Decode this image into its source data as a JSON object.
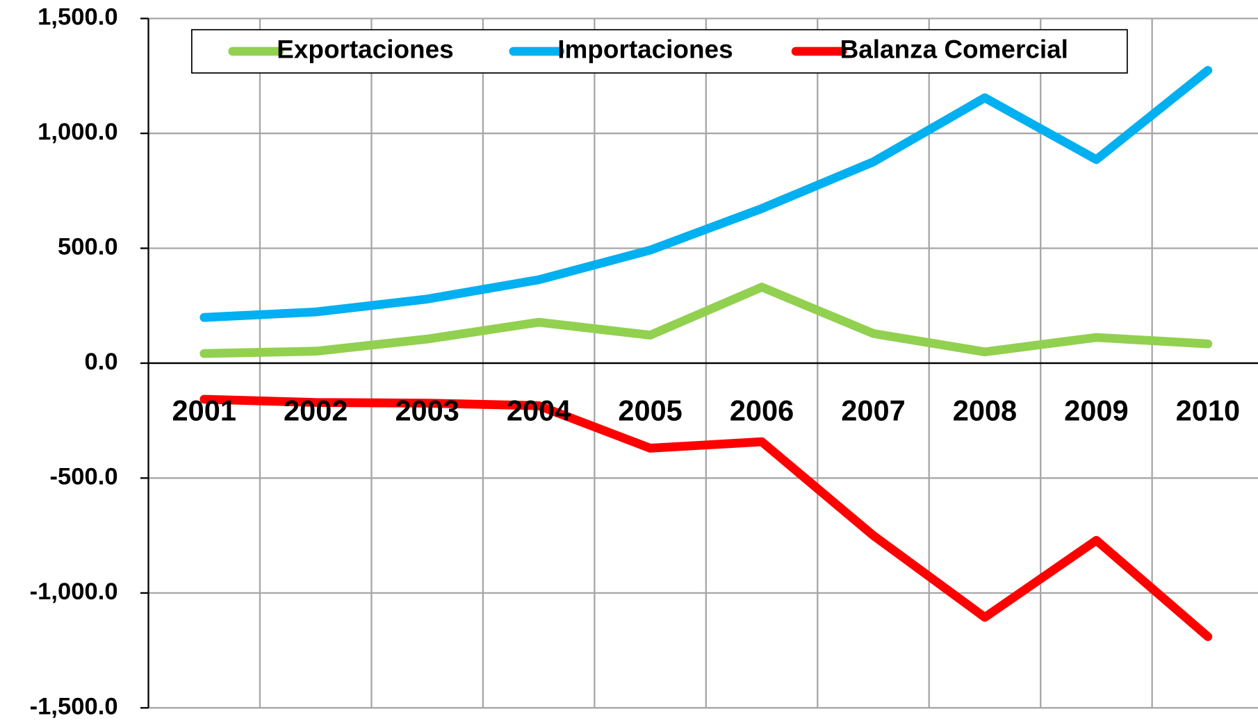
{
  "chart_data": {
    "type": "line",
    "categories": [
      "2001",
      "2002",
      "2003",
      "2004",
      "2005",
      "2006",
      "2007",
      "2008",
      "2009",
      "2010"
    ],
    "series": [
      {
        "name": "Exportaciones",
        "color": "#92d050",
        "values": [
          42,
          52,
          105,
          178,
          122,
          331,
          129,
          49,
          112,
          84
        ]
      },
      {
        "name": "Importaciones",
        "color": "#00b0f0",
        "values": [
          199,
          223,
          279,
          363,
          492,
          673,
          876,
          1155,
          886,
          1274
        ]
      },
      {
        "name": "Balanza Comercial",
        "color": "#ff0000",
        "values": [
          -157,
          -171,
          -174,
          -185,
          -370,
          -342,
          -750,
          -1106,
          -771,
          -1190
        ]
      }
    ],
    "ylim": [
      -1500,
      1500
    ],
    "yticks": [
      {
        "value": -1500,
        "label": "-1,500.0"
      },
      {
        "value": -1000,
        "label": "-1,000.0"
      },
      {
        "value": -500,
        "label": "-500.0"
      },
      {
        "value": 0,
        "label": "0.0"
      },
      {
        "value": 500,
        "label": "500.0"
      },
      {
        "value": 1000,
        "label": "1,000.0"
      },
      {
        "value": 1500,
        "label": "1,500.0"
      }
    ],
    "grid": true,
    "legend": "top"
  }
}
